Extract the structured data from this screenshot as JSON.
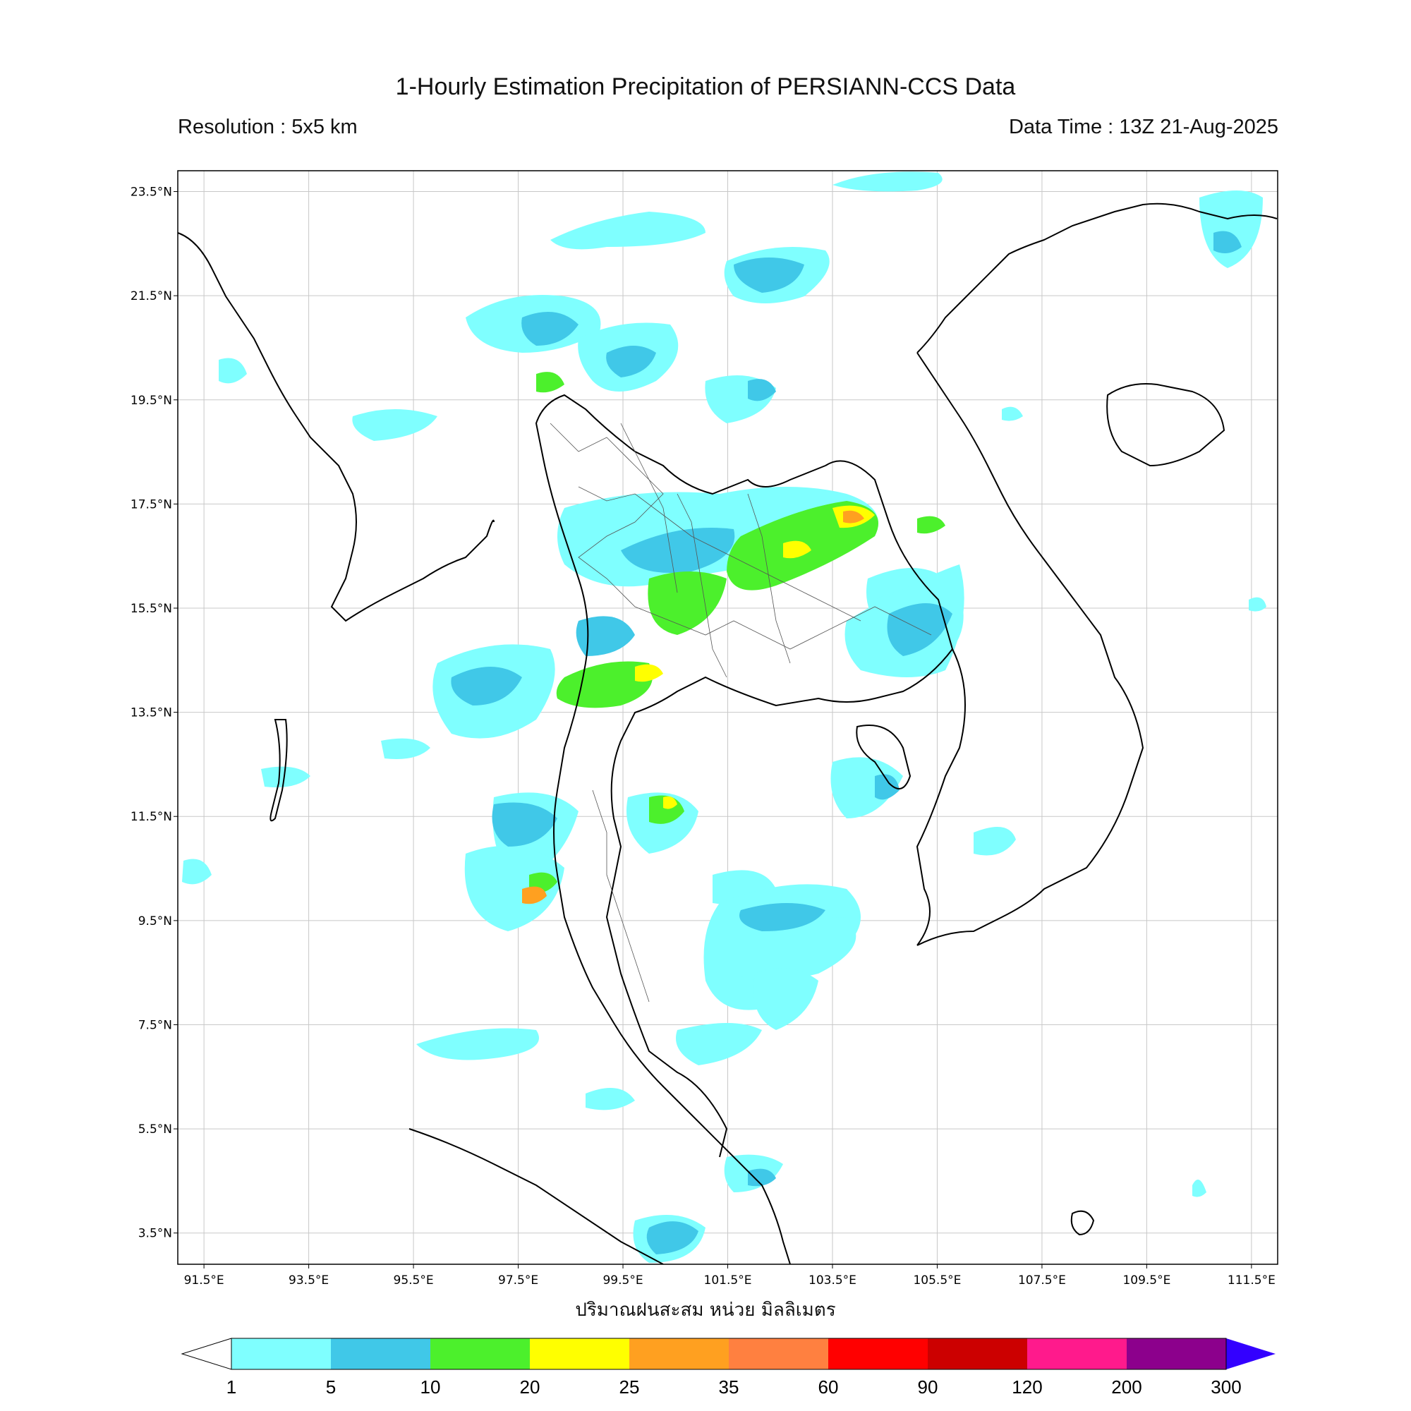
{
  "header": {
    "title": "1-Hourly Estimation Precipitation of PERSIANN-CCS Data",
    "resolution": "Resolution : 5x5 km",
    "data_time": "Data Time : 13Z 21-Aug-2025"
  },
  "map": {
    "lon_range": [
      91.0,
      112.0
    ],
    "lat_range": [
      2.9,
      23.9
    ],
    "lon_ticks": [
      "91.5°E",
      "93.5°E",
      "95.5°E",
      "97.5°E",
      "99.5°E",
      "101.5°E",
      "103.5°E",
      "105.5°E",
      "107.5°E",
      "109.5°E",
      "111.5°E"
    ],
    "lat_ticks": [
      "23.5°N",
      "21.5°N",
      "19.5°N",
      "17.5°N",
      "15.5°N",
      "13.5°N",
      "11.5°N",
      "9.5°N",
      "7.5°N",
      "5.5°N",
      "3.5°N"
    ],
    "grid": true,
    "x_axis_label": "ปริมาณฝนสะสม หน่วย มิลลิเมตร"
  },
  "colorbar": {
    "ticks": [
      "1",
      "5",
      "10",
      "20",
      "25",
      "35",
      "60",
      "90",
      "120",
      "200",
      "300"
    ],
    "colors": [
      "#7fffff",
      "#40c8e8",
      "#4cf02c",
      "#ffff00",
      "#ffa020",
      "#ff8040",
      "#ff0000",
      "#cc0000",
      "#ff1a8c",
      "#8c008c"
    ],
    "extend_max_color": "#3300ff",
    "extend_min_color": "#ffffff"
  }
}
